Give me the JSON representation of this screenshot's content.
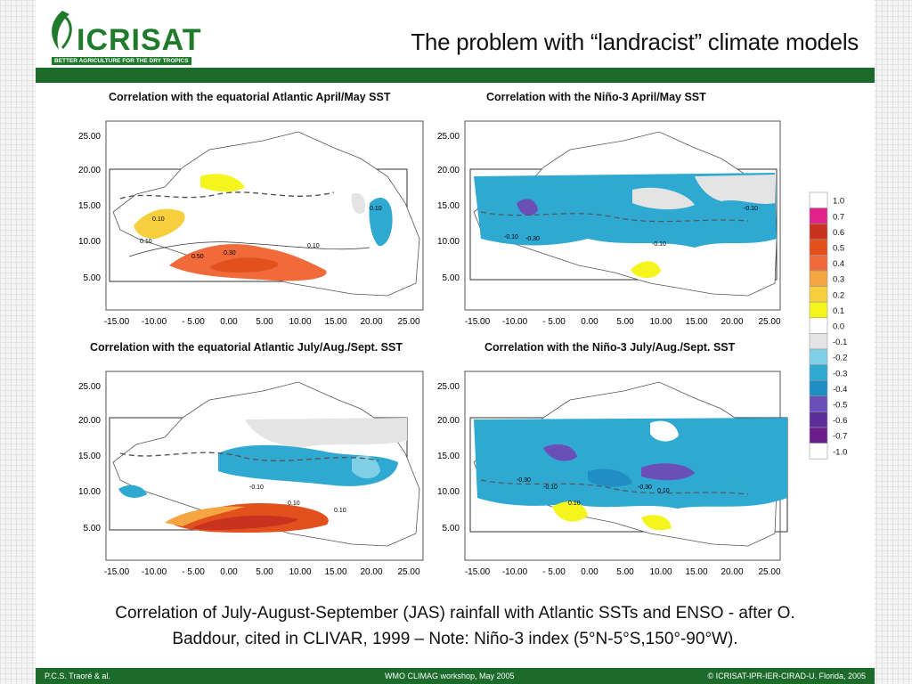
{
  "header": {
    "logo_text": "ICRISAT",
    "logo_tagline": "BETTER AGRICULTURE FOR THE DRY TROPICS",
    "title": "The problem with “landracist” climate models"
  },
  "panels": [
    {
      "title": "Correlation with the equatorial Atlantic April/May SST",
      "y_ticks": [
        "25.00",
        "20.00",
        "15.00",
        "10.00",
        "5.00"
      ],
      "x_ticks": [
        "-15.00",
        "-10.00",
        "- 5.00",
        "0.00",
        "5.00",
        "10.00",
        "15.00",
        "20.00",
        "25.00"
      ],
      "contour_labels": [
        "0.10",
        "0.10",
        "0.50",
        "0.30",
        "0.10",
        "0.10"
      ]
    },
    {
      "title": "Correlation with the Niño-3 April/May SST",
      "y_ticks": [
        "25.00",
        "20.00",
        "15.00",
        "10.00",
        "5.00"
      ],
      "x_ticks": [
        "-15.00",
        "-10.00",
        "- 5.00",
        "0.00",
        "5.00",
        "10.00",
        "15.00",
        "20.00",
        "25.00"
      ],
      "contour_labels": [
        "-0.10",
        "-0.30",
        "-0.10",
        "-0.10"
      ]
    },
    {
      "title": "Correlation with the equatorial Atlantic July/Aug./Sept. SST",
      "y_ticks": [
        "25.00",
        "20.00",
        "15.00",
        "10.00",
        "5.00"
      ],
      "x_ticks": [
        "-15.00",
        "-10.00",
        "- 5.00",
        "0.00",
        "5.00",
        "10.00",
        "15.00",
        "20.00",
        "25.00"
      ],
      "contour_labels": [
        "-0.10",
        "0.10",
        "0.10"
      ]
    },
    {
      "title": "Correlation with the Niño-3 July/Aug./Sept. SST",
      "y_ticks": [
        "25.00",
        "20.00",
        "15.00",
        "10.00",
        "5.00"
      ],
      "x_ticks": [
        "-15.00",
        "-10.00",
        "- 5.00",
        "0.00",
        "5.00",
        "10.00",
        "15.00",
        "20.00",
        "25.00"
      ],
      "contour_labels": [
        "-0.30",
        "-0.10",
        "0.10",
        "-0.30",
        "0.10"
      ]
    }
  ],
  "legend": {
    "labels": [
      "1.0",
      "0.7",
      "0.6",
      "0.5",
      "0.4",
      "0.3",
      "0.2",
      "0.1",
      "0.0",
      "-0.1",
      "-0.2",
      "-0.3",
      "-0.4",
      "-0.5",
      "-0.6",
      "-0.7",
      "-1.0"
    ],
    "colors": [
      "#ffffff",
      "#e0228a",
      "#c8321e",
      "#e2501e",
      "#f06a3a",
      "#f5a542",
      "#f7cf3e",
      "#f5f51e",
      "#ffffff",
      "#e4e4e4",
      "#7fd0e6",
      "#2fa9d2",
      "#1f8ec2",
      "#6a4fb8",
      "#5a2d9a",
      "#6a1c8a",
      "#ffffff"
    ]
  },
  "caption": {
    "line1": "Correlation of July-August-September (JAS) rainfall with Atlantic SSTs and ENSO - after O.",
    "line2": "Baddour, cited in CLIVAR, 1999 – Note: Niño-3 index (5°N-5°S,150°-90°W)."
  },
  "footer": {
    "left": "P.C.S. Traoré & al.",
    "center": "WMO CLIMAG workshop, May 2005",
    "right": "© ICRISAT-IPR-IER-CIRAD-U. Florida, 2005"
  }
}
